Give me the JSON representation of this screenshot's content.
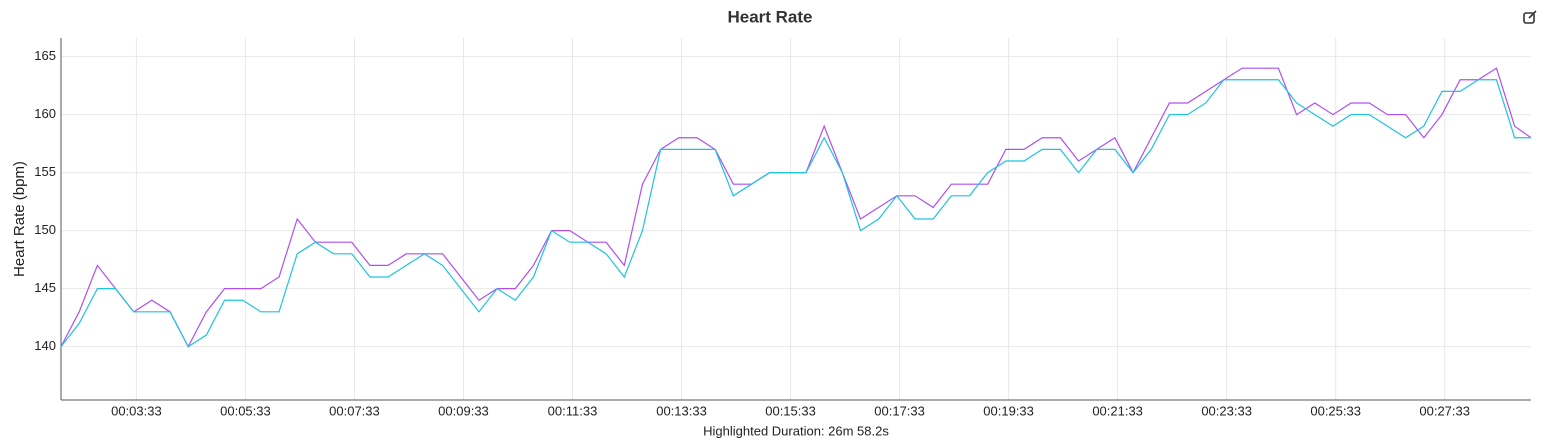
{
  "chart_data": {
    "type": "line",
    "title": "Heart Rate",
    "ylabel": "Heart Rate (bpm)",
    "xlabel": "Highlighted Duration: 26m 58.2s",
    "x": [
      130,
      150,
      170,
      190,
      210,
      230,
      250,
      270,
      290,
      310,
      330,
      350,
      370,
      390,
      410,
      430,
      450,
      470,
      490,
      510,
      530,
      550,
      570,
      590,
      610,
      630,
      650,
      670,
      690,
      710,
      730,
      750,
      770,
      790,
      810,
      830,
      850,
      870,
      890,
      910,
      930,
      950,
      970,
      990,
      1010,
      1030,
      1050,
      1070,
      1090,
      1110,
      1130,
      1150,
      1170,
      1190,
      1210,
      1230,
      1250,
      1270,
      1290,
      1310,
      1330,
      1350,
      1370,
      1390,
      1410,
      1430,
      1450,
      1470,
      1490,
      1510,
      1530,
      1550,
      1570,
      1590,
      1610,
      1630,
      1650,
      1670,
      1690,
      1710,
      1730,
      1748
    ],
    "series": [
      {
        "color": "#b04ff0",
        "values": [
          140,
          143,
          147,
          145,
          143,
          144,
          143,
          140,
          143,
          145,
          145,
          145,
          146,
          151,
          149,
          149,
          149,
          147,
          147,
          148,
          148,
          148,
          146,
          144,
          145,
          145,
          147,
          150,
          150,
          149,
          149,
          147,
          154,
          157,
          158,
          158,
          157,
          154,
          154,
          155,
          155,
          155,
          159,
          155,
          151,
          152,
          153,
          153,
          152,
          154,
          154,
          154,
          157,
          157,
          158,
          158,
          156,
          157,
          158,
          155,
          158,
          161,
          161,
          162,
          163,
          164,
          164,
          164,
          160,
          161,
          160,
          161,
          161,
          160,
          160,
          158,
          160,
          163,
          163,
          164,
          159,
          158
        ]
      },
      {
        "color": "#1ec3e0",
        "values": [
          140,
          142,
          145,
          145,
          143,
          143,
          143,
          140,
          141,
          144,
          144,
          143,
          143,
          148,
          149,
          148,
          148,
          146,
          146,
          147,
          148,
          147,
          145,
          143,
          145,
          144,
          146,
          150,
          149,
          149,
          148,
          146,
          150,
          157,
          157,
          157,
          157,
          153,
          154,
          155,
          155,
          155,
          158,
          155,
          150,
          151,
          153,
          151,
          151,
          153,
          153,
          155,
          156,
          156,
          157,
          157,
          155,
          157,
          157,
          155,
          157,
          160,
          160,
          161,
          163,
          163,
          163,
          163,
          161,
          160,
          159,
          160,
          160,
          159,
          158,
          159,
          162,
          162,
          163,
          163,
          158,
          158
        ]
      }
    ],
    "xlim": [
      130,
      1748
    ],
    "xticks": [
      {
        "value": 213,
        "label": "00:03:33"
      },
      {
        "value": 333,
        "label": "00:05:33"
      },
      {
        "value": 453,
        "label": "00:07:33"
      },
      {
        "value": 573,
        "label": "00:09:33"
      },
      {
        "value": 693,
        "label": "00:11:33"
      },
      {
        "value": 813,
        "label": "00:13:33"
      },
      {
        "value": 933,
        "label": "00:15:33"
      },
      {
        "value": 1053,
        "label": "00:17:33"
      },
      {
        "value": 1173,
        "label": "00:19:33"
      },
      {
        "value": 1293,
        "label": "00:21:33"
      },
      {
        "value": 1413,
        "label": "00:23:33"
      },
      {
        "value": 1533,
        "label": "00:25:33"
      },
      {
        "value": 1653,
        "label": "00:27:33"
      }
    ],
    "ylim": [
      135.4,
      166.6
    ],
    "yticks": [
      140,
      145,
      150,
      155,
      160,
      165
    ],
    "grid": true
  }
}
